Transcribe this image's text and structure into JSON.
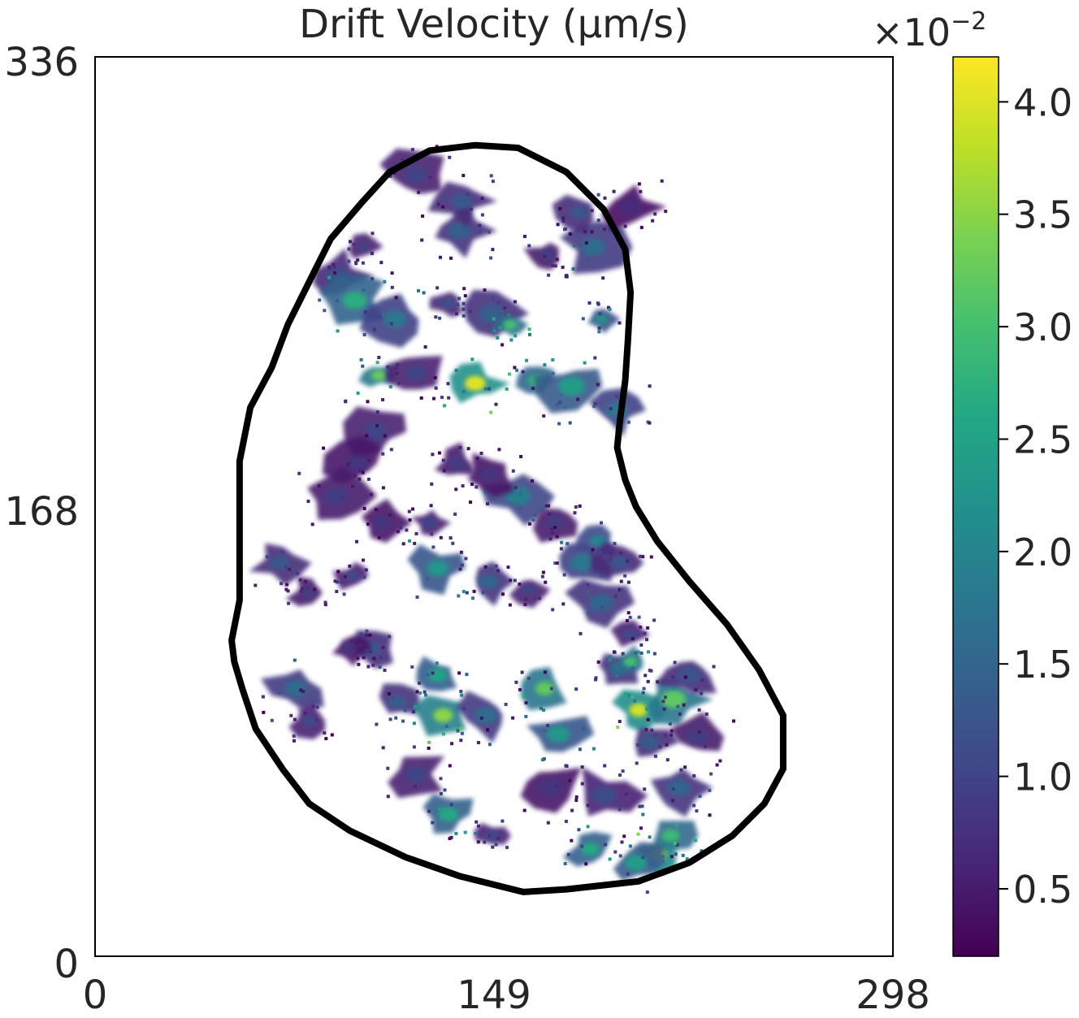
{
  "chart_data": {
    "type": "heatmap",
    "title": "Drift Velocity (μm/s)",
    "xlabel": "",
    "ylabel": "",
    "xlim": [
      0,
      298
    ],
    "ylim": [
      0,
      336
    ],
    "x_ticks": [
      0,
      149,
      298
    ],
    "x_tick_labels": [
      "0",
      "149",
      "298"
    ],
    "y_ticks": [
      0,
      168,
      336
    ],
    "y_tick_labels": [
      "0",
      "168",
      "336"
    ],
    "grid": false,
    "colormap": "viridis",
    "colorbar": {
      "range": [
        0.2,
        4.2
      ],
      "ticks": [
        0.5,
        1.0,
        1.5,
        2.0,
        2.5,
        3.0,
        3.5,
        4.0
      ],
      "tick_labels": [
        "0.5",
        "1.0",
        "1.5",
        "2.0",
        "2.5",
        "3.0",
        "3.5",
        "4.0"
      ],
      "multiplier_base": "×10",
      "multiplier_exp": "−2"
    },
    "boundary_outline": [
      [
        142,
        303
      ],
      [
        158,
        302
      ],
      [
        176,
        293
      ],
      [
        190,
        279
      ],
      [
        198,
        264
      ],
      [
        200,
        248
      ],
      [
        199,
        230
      ],
      [
        198,
        215
      ],
      [
        196,
        200
      ],
      [
        195,
        190
      ],
      [
        198,
        178
      ],
      [
        202,
        168
      ],
      [
        210,
        155
      ],
      [
        222,
        140
      ],
      [
        236,
        124
      ],
      [
        248,
        107
      ],
      [
        257,
        90
      ],
      [
        257,
        70
      ],
      [
        250,
        57
      ],
      [
        238,
        45
      ],
      [
        222,
        35
      ],
      [
        203,
        28
      ],
      [
        176,
        25
      ],
      [
        160,
        24
      ],
      [
        136,
        30
      ],
      [
        116,
        37
      ],
      [
        95,
        47
      ],
      [
        80,
        57
      ],
      [
        70,
        70
      ],
      [
        60,
        85
      ],
      [
        55,
        100
      ],
      [
        52,
        110
      ],
      [
        51,
        118
      ],
      [
        54,
        133
      ],
      [
        54,
        160
      ],
      [
        54,
        185
      ],
      [
        58,
        205
      ],
      [
        66,
        220
      ],
      [
        72,
        236
      ],
      [
        80,
        252
      ],
      [
        88,
        268
      ],
      [
        100,
        282
      ],
      [
        110,
        293
      ],
      [
        125,
        301
      ],
      [
        142,
        303
      ]
    ],
    "hotspots": [
      {
        "x": 100,
        "y": 265,
        "value": 1.0
      },
      {
        "x": 91,
        "y": 254,
        "value": 1.2
      },
      {
        "x": 136,
        "y": 271,
        "value": 1.4
      },
      {
        "x": 137,
        "y": 282,
        "value": 1.3
      },
      {
        "x": 120,
        "y": 292,
        "value": 1.0
      },
      {
        "x": 186,
        "y": 265,
        "value": 1.6
      },
      {
        "x": 169,
        "y": 262,
        "value": 0.9
      },
      {
        "x": 181,
        "y": 278,
        "value": 1.3
      },
      {
        "x": 200,
        "y": 280,
        "value": 0.7
      },
      {
        "x": 97,
        "y": 245,
        "value": 2.7
      },
      {
        "x": 112,
        "y": 238,
        "value": 1.8
      },
      {
        "x": 132,
        "y": 244,
        "value": 1.2
      },
      {
        "x": 148,
        "y": 240,
        "value": 1.4
      },
      {
        "x": 155,
        "y": 236,
        "value": 3.0
      },
      {
        "x": 142,
        "y": 214,
        "value": 4.0
      },
      {
        "x": 165,
        "y": 215,
        "value": 2.8
      },
      {
        "x": 178,
        "y": 213,
        "value": 2.4
      },
      {
        "x": 106,
        "y": 217,
        "value": 3.3
      },
      {
        "x": 120,
        "y": 218,
        "value": 1.0
      },
      {
        "x": 189,
        "y": 238,
        "value": 2.2
      },
      {
        "x": 195,
        "y": 204,
        "value": 1.8
      },
      {
        "x": 105,
        "y": 196,
        "value": 1.0
      },
      {
        "x": 98,
        "y": 184,
        "value": 0.8
      },
      {
        "x": 135,
        "y": 184,
        "value": 0.9
      },
      {
        "x": 158,
        "y": 172,
        "value": 1.9
      },
      {
        "x": 147,
        "y": 180,
        "value": 0.8
      },
      {
        "x": 188,
        "y": 155,
        "value": 2.0
      },
      {
        "x": 125,
        "y": 162,
        "value": 1.0
      },
      {
        "x": 172,
        "y": 162,
        "value": 0.9
      },
      {
        "x": 107,
        "y": 162,
        "value": 0.8
      },
      {
        "x": 90,
        "y": 172,
        "value": 0.9
      },
      {
        "x": 69,
        "y": 147,
        "value": 1.3
      },
      {
        "x": 80,
        "y": 136,
        "value": 0.9
      },
      {
        "x": 96,
        "y": 142,
        "value": 1.1
      },
      {
        "x": 128,
        "y": 145,
        "value": 2.3
      },
      {
        "x": 147,
        "y": 140,
        "value": 1.5
      },
      {
        "x": 162,
        "y": 137,
        "value": 1.0
      },
      {
        "x": 182,
        "y": 147,
        "value": 1.8
      },
      {
        "x": 189,
        "y": 132,
        "value": 1.5
      },
      {
        "x": 196,
        "y": 147,
        "value": 1.2
      },
      {
        "x": 103,
        "y": 115,
        "value": 1.3
      },
      {
        "x": 95,
        "y": 115,
        "value": 0.8
      },
      {
        "x": 75,
        "y": 100,
        "value": 1.6
      },
      {
        "x": 80,
        "y": 88,
        "value": 1.1
      },
      {
        "x": 113,
        "y": 95,
        "value": 1.4
      },
      {
        "x": 128,
        "y": 105,
        "value": 2.5
      },
      {
        "x": 130,
        "y": 90,
        "value": 3.5
      },
      {
        "x": 146,
        "y": 90,
        "value": 1.6
      },
      {
        "x": 173,
        "y": 83,
        "value": 2.3
      },
      {
        "x": 168,
        "y": 100,
        "value": 3.2
      },
      {
        "x": 195,
        "y": 107,
        "value": 1.5
      },
      {
        "x": 200,
        "y": 110,
        "value": 3.0
      },
      {
        "x": 203,
        "y": 92,
        "value": 3.9
      },
      {
        "x": 216,
        "y": 96,
        "value": 3.2
      },
      {
        "x": 222,
        "y": 105,
        "value": 1.2
      },
      {
        "x": 207,
        "y": 80,
        "value": 1.3
      },
      {
        "x": 225,
        "y": 82,
        "value": 0.9
      },
      {
        "x": 170,
        "y": 63,
        "value": 0.8
      },
      {
        "x": 190,
        "y": 60,
        "value": 1.1
      },
      {
        "x": 218,
        "y": 63,
        "value": 1.5
      },
      {
        "x": 215,
        "y": 45,
        "value": 2.9
      },
      {
        "x": 210,
        "y": 38,
        "value": 3.8
      },
      {
        "x": 202,
        "y": 35,
        "value": 2.4
      },
      {
        "x": 185,
        "y": 40,
        "value": 2.6
      },
      {
        "x": 148,
        "y": 45,
        "value": 1.1
      },
      {
        "x": 132,
        "y": 53,
        "value": 2.6
      },
      {
        "x": 120,
        "y": 68,
        "value": 1.0
      },
      {
        "x": 200,
        "y": 120,
        "value": 1.1
      }
    ]
  }
}
